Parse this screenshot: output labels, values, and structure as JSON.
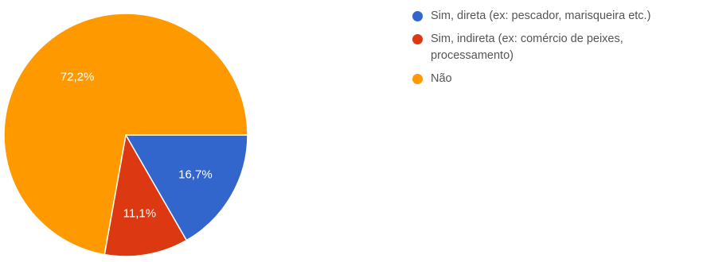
{
  "chart_data": {
    "type": "pie",
    "title": "",
    "legend_position": "right",
    "slices": [
      {
        "label": "Sim, direta (ex: pescador, marisqueira etc.)",
        "value": 16.7,
        "display": "16,7%",
        "color": "#3366cc"
      },
      {
        "label": "Sim, indireta (ex: comércio de peixes, processamento)",
        "value": 11.1,
        "display": "11,1%",
        "color": "#dc3912"
      },
      {
        "label": "Não",
        "value": 72.2,
        "display": "72,2%",
        "color": "#ff9900"
      }
    ]
  }
}
